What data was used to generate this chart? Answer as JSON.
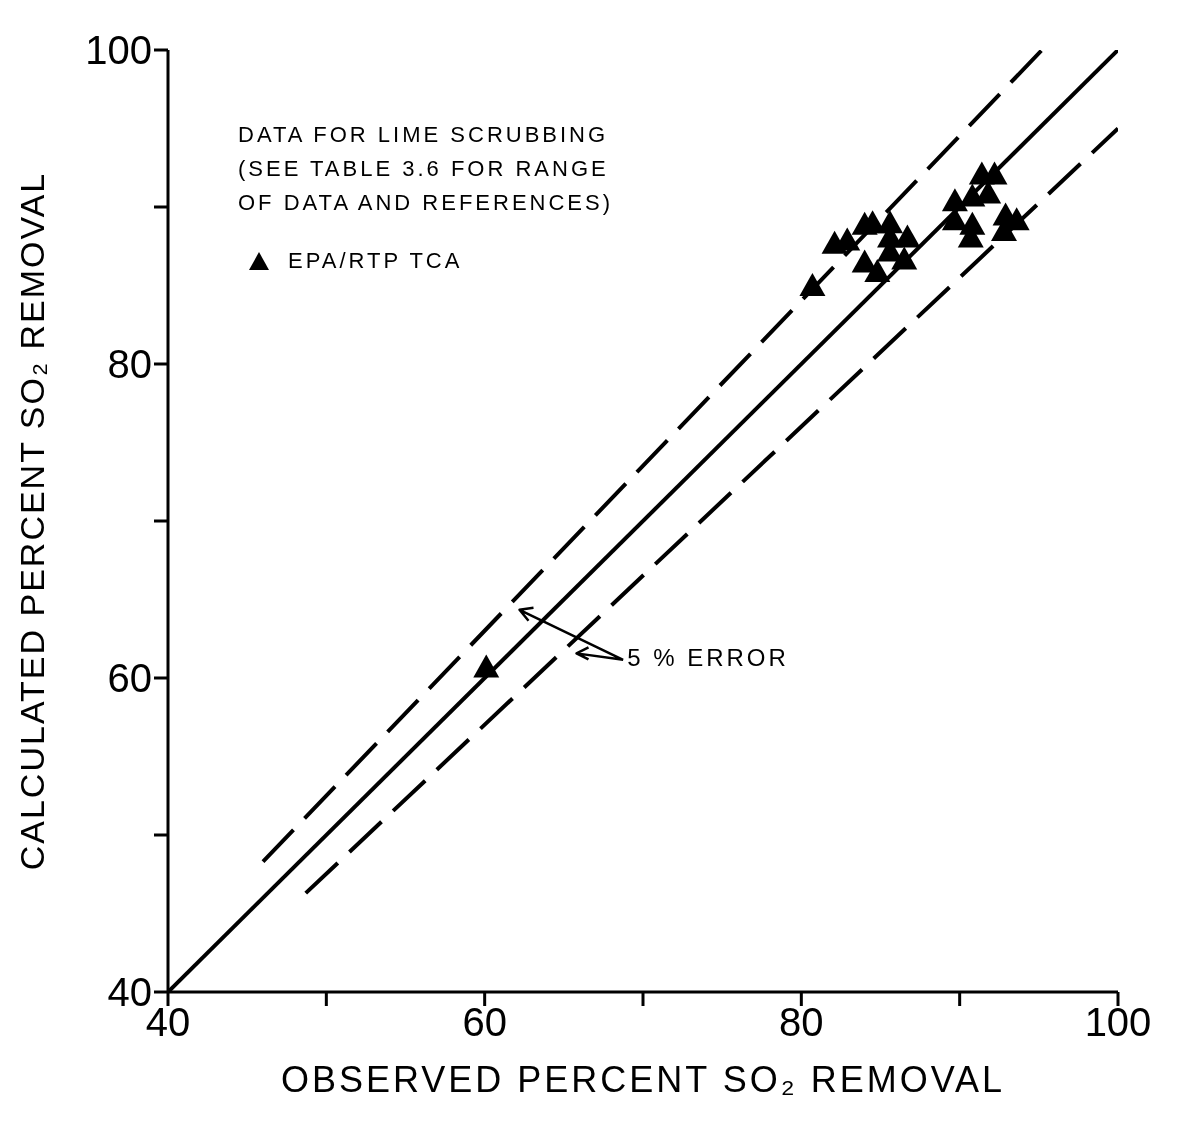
{
  "chart_data": {
    "type": "scatter",
    "xlabel": "OBSERVED PERCENT SO₂ REMOVAL",
    "ylabel": "CALCULATED PERCENT SO₂ REMOVAL",
    "xlim": [
      40,
      100
    ],
    "ylim": [
      40,
      100
    ],
    "xticks": [
      40,
      {
        "value": 50,
        "label": null
      },
      60,
      {
        "value": 70,
        "label": null
      },
      80,
      {
        "value": 90,
        "label": null
      },
      100
    ],
    "yticks": [
      40,
      {
        "value": 50,
        "label": null
      },
      60,
      {
        "value": 70,
        "label": null
      },
      80,
      {
        "value": 90,
        "label": null
      },
      100
    ],
    "grid": false,
    "legend": "top left",
    "marker": "triangle",
    "annotations": [
      "DATA FOR LIME SCRUBBING\n(SEE TABLE 3.6 FOR RANGE\nOF DATA AND REFERENCES)",
      "5 % ERROR"
    ],
    "series": [
      {
        "name": "EPA/RTP TCA",
        "type": "scatter",
        "color": "#000000",
        "x": [
          60.1,
          80.7,
          82.1,
          82.9,
          84.0,
          84.5,
          85.6,
          85.6,
          86.7,
          84.0,
          84.8,
          85.6,
          86.5,
          91.4,
          92.2,
          91.8,
          90.8,
          89.7,
          89.7,
          90.8,
          90.7,
          92.9,
          93.6,
          92.8
        ],
        "values": [
          60.6,
          84.9,
          87.6,
          87.8,
          88.8,
          88.9,
          88.9,
          88.0,
          88.0,
          86.4,
          85.8,
          87.1,
          86.6,
          92.0,
          92.0,
          90.8,
          90.6,
          90.3,
          89.1,
          88.8,
          88.0,
          89.4,
          89.1,
          88.4
        ]
      },
      {
        "type": "line",
        "color": "#000000",
        "line_style": "solid",
        "marker": "none",
        "x": [
          40,
          100
        ],
        "values": [
          40,
          100
        ]
      },
      {
        "type": "line",
        "color": "#000000",
        "line_style": "dashed",
        "marker": "none",
        "x": [
          46,
          95.2
        ],
        "values": [
          48.3,
          100
        ]
      },
      {
        "type": "line",
        "color": "#000000",
        "line_style": "dashed",
        "marker": "none",
        "x": [
          48.7,
          100
        ],
        "values": [
          46.3,
          95
        ]
      }
    ]
  }
}
